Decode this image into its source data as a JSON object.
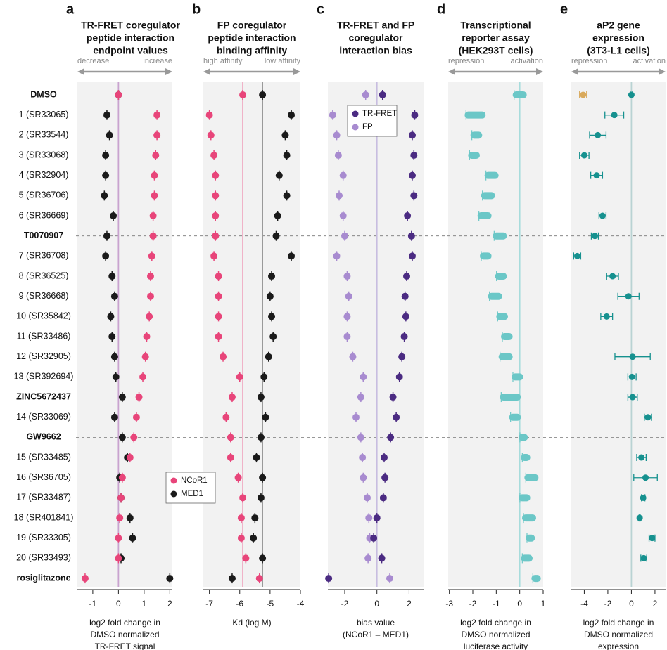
{
  "chart_data": [
    {
      "type": "dot",
      "panel": "a",
      "title": [
        "TR-FRET coregulator",
        "peptide interaction",
        "endpoint values"
      ],
      "arrow_labels": [
        "decrease",
        "increase"
      ],
      "x_label": [
        "log2 fold change in",
        "DMSO normalized",
        "TR-FRET signal"
      ],
      "categories": [
        "DMSO",
        "1 (SR33065)",
        "2 (SR33544)",
        "3 (SR33068)",
        "4 (SR32904)",
        "5 (SR36706)",
        "6 (SR36669)",
        "T0070907",
        "7 (SR36708)",
        "8 (SR36525)",
        "9 (SR36668)",
        "10 (SR35842)",
        "11 (SR33486)",
        "12 (SR32905)",
        "13 (SR392694)",
        "ZINC5672437",
        "14 (SR33069)",
        "GW9662",
        "15 (SR33485)",
        "16 (SR36705)",
        "17 (SR33487)",
        "18 (SR401841)",
        "19 (SR33305)",
        "20 (SR33493)",
        "rosiglitazone"
      ],
      "xlim": [
        -1.6,
        2.1
      ],
      "xticks": [
        -1,
        0,
        1,
        2
      ],
      "vlines": [
        {
          "value": 0,
          "color": "#c9a3cf"
        }
      ],
      "legend": "lower right",
      "series": [
        {
          "name": "NCoR1",
          "color": "#e8457a",
          "values": [
            0,
            1.5,
            1.5,
            1.45,
            1.4,
            1.4,
            1.35,
            1.35,
            1.3,
            1.25,
            1.25,
            1.2,
            1.1,
            1.05,
            0.95,
            0.8,
            0.7,
            0.6,
            0.45,
            0.15,
            0.1,
            0.05,
            0,
            0,
            -1.3
          ]
        },
        {
          "name": "MED1",
          "color": "#1a1a1a",
          "values": [
            0,
            -0.45,
            -0.35,
            -0.5,
            -0.5,
            -0.55,
            -0.2,
            -0.45,
            -0.5,
            -0.25,
            -0.15,
            -0.3,
            -0.25,
            -0.15,
            -0.1,
            0.15,
            -0.15,
            0.15,
            0.35,
            0.05,
            0.1,
            0.45,
            0.55,
            0.1,
            2.0
          ]
        }
      ]
    },
    {
      "type": "dot",
      "panel": "b",
      "title": [
        "FP coregulator",
        "peptide interaction",
        "binding affinity"
      ],
      "arrow_labels": [
        "high affinity",
        "low affinity"
      ],
      "x_label": [
        "Kd (log M)"
      ],
      "xlim": [
        -7.2,
        -4
      ],
      "xticks": [
        -7,
        -6,
        -5,
        -4
      ],
      "vlines": [
        {
          "value": -5.9,
          "color": "#f0a7c0"
        },
        {
          "value": -5.25,
          "color": "#9a9a9a"
        }
      ],
      "series": [
        {
          "color": "#e8457a",
          "values": [
            -5.9,
            -7.0,
            -6.95,
            -6.85,
            -6.8,
            -6.8,
            -6.8,
            -6.8,
            -6.85,
            -6.7,
            -6.7,
            -6.7,
            -6.7,
            -6.55,
            -6.0,
            -6.25,
            -6.45,
            -6.3,
            -6.3,
            -6.05,
            -5.9,
            -5.95,
            -5.95,
            -5.8,
            -5.35
          ]
        },
        {
          "color": "#1a1a1a",
          "values": [
            -5.25,
            -4.3,
            -4.5,
            -4.45,
            -4.7,
            -4.45,
            -4.75,
            -4.8,
            -4.3,
            -4.95,
            -5.0,
            -4.95,
            -4.9,
            -5.05,
            -5.2,
            -5.3,
            -5.15,
            -5.3,
            -5.45,
            -5.25,
            -5.3,
            -5.5,
            -5.55,
            -5.25,
            -6.25
          ]
        }
      ]
    },
    {
      "type": "dot",
      "panel": "c",
      "title": [
        "TR-FRET and FP",
        "coregulator",
        "interaction bias"
      ],
      "x_label": [
        "bias value",
        "(NCoR1 – MED1)"
      ],
      "xlim": [
        -3.05,
        2.9
      ],
      "xticks": [
        -2,
        0,
        2
      ],
      "vlines": [
        {
          "value": 0,
          "color": "#c8bde0"
        }
      ],
      "legend": "upper left",
      "series": [
        {
          "name": "TR-FRET",
          "color": "#4b2b82",
          "values": [
            0.35,
            2.35,
            2.2,
            2.3,
            2.2,
            2.3,
            1.9,
            2.15,
            2.2,
            1.85,
            1.75,
            1.8,
            1.7,
            1.55,
            1.4,
            1.0,
            1.2,
            0.85,
            0.45,
            0.5,
            0.4,
            0.0,
            -0.2,
            0.3,
            -3.0
          ]
        },
        {
          "name": "FP",
          "color": "#a88bd0",
          "values": [
            -0.7,
            -2.75,
            -2.5,
            -2.4,
            -2.1,
            -2.35,
            -2.1,
            -2.0,
            -2.5,
            -1.85,
            -1.75,
            -1.85,
            -1.85,
            -1.5,
            -0.85,
            -1.0,
            -1.3,
            -1.0,
            -0.9,
            -0.85,
            -0.6,
            -0.5,
            -0.45,
            -0.55,
            0.8
          ]
        }
      ]
    },
    {
      "type": "spread",
      "panel": "d",
      "title": [
        "Transcriptional",
        "reporter assay",
        "(HEK293T cells)"
      ],
      "arrow_labels": [
        "repression",
        "activation"
      ],
      "x_label": [
        "log2 fold change in",
        "DMSO normalized",
        "luciferase activity"
      ],
      "xlim": [
        -3.05,
        1.0
      ],
      "xticks": [
        -3,
        -2,
        -1,
        0,
        1
      ],
      "vlines": [
        {
          "value": 0,
          "color": "#a7dcdc"
        }
      ],
      "series": [
        {
          "color": "#6bc7c7",
          "values": [
            0,
            -1.9,
            -1.85,
            -1.95,
            -1.2,
            -1.35,
            -1.5,
            -0.85,
            -1.45,
            -0.8,
            -1.05,
            -0.75,
            -0.55,
            -0.6,
            -0.1,
            -0.4,
            -0.2,
            0.15,
            0.25,
            0.5,
            0.2,
            0.4,
            0.45,
            0.3,
            0.7
          ],
          "errors": [
            0.15,
            0.3,
            0.1,
            0.1,
            0.15,
            0.15,
            0.15,
            0.15,
            0.1,
            0.1,
            0.15,
            0.1,
            0.1,
            0.15,
            0.1,
            0.3,
            0.1,
            0.05,
            0.05,
            0.15,
            0.1,
            0.15,
            0.05,
            0.1,
            0.05
          ]
        }
      ]
    },
    {
      "type": "errorbar",
      "panel": "e",
      "title": [
        "aP2 gene",
        "expression",
        "(3T3-L1 cells)"
      ],
      "arrow_labels": [
        "repression",
        "activation"
      ],
      "x_label": [
        "log2 fold change in",
        "DMSO normalized",
        "expression"
      ],
      "xlim": [
        -5.1,
        2.9
      ],
      "xticks": [
        -4,
        -2,
        0,
        2
      ],
      "vlines": [
        {
          "value": 0,
          "color": "#b9d3d3"
        }
      ],
      "series": [
        {
          "color": "#16918f",
          "values": [
            0,
            -1.45,
            -2.85,
            -4.0,
            -2.95,
            null,
            -2.45,
            -3.1,
            -4.6,
            -1.6,
            -0.25,
            -2.1,
            null,
            0.1,
            0.05,
            0.1,
            1.4,
            null,
            0.85,
            1.2,
            1.0,
            0.7,
            1.75,
            1.05,
            null
          ],
          "errors": [
            0.1,
            0.8,
            0.7,
            0.4,
            0.5,
            null,
            0.3,
            0.3,
            0.3,
            0.5,
            0.9,
            0.5,
            null,
            1.5,
            0.35,
            0.4,
            0.3,
            null,
            0.4,
            1.0,
            0.15,
            0.05,
            0.25,
            0.25,
            null
          ]
        },
        {
          "color": "#d9a95b",
          "values": [
            -4.1,
            null,
            null,
            null,
            null,
            null,
            null,
            null,
            null,
            null,
            null,
            null,
            null,
            null,
            null,
            null,
            null,
            null,
            null,
            null,
            null,
            null,
            null,
            null,
            null
          ],
          "errors": [
            0.3,
            null,
            null,
            null,
            null,
            null,
            null,
            null,
            null,
            null,
            null,
            null,
            null,
            null,
            null,
            null,
            null,
            null,
            null,
            null,
            null,
            null,
            null,
            null,
            null
          ]
        }
      ]
    }
  ]
}
